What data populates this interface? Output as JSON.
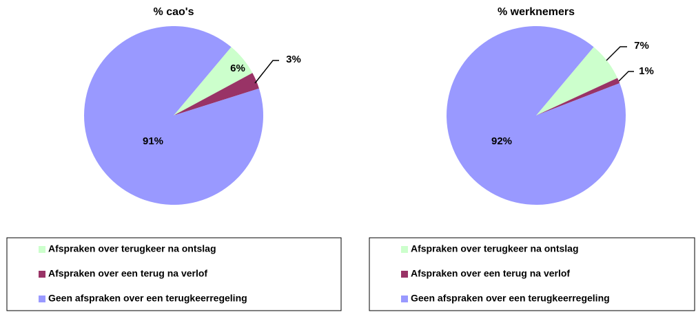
{
  "chart_data": [
    {
      "type": "pie",
      "title": "% cao's",
      "categories": [
        "Afspraken over terugkeer na ontslag",
        "Afspraken over een terug na verlof",
        "Geen afspraken over een terugkeerregeling"
      ],
      "values": [
        6,
        3,
        91
      ],
      "value_labels": [
        "6%",
        "3%",
        "91%"
      ],
      "colors": [
        "#ccffcc",
        "#993366",
        "#9999ff"
      ]
    },
    {
      "type": "pie",
      "title": "% werknemers",
      "categories": [
        "Afspraken over terugkeer na ontslag",
        "Afspraken over een terug na verlof",
        "Geen afspraken over een terugkeerregeling"
      ],
      "values": [
        7,
        1,
        92
      ],
      "value_labels": [
        "7%",
        "1%",
        "92%"
      ],
      "colors": [
        "#ccffcc",
        "#993366",
        "#9999ff"
      ]
    }
  ]
}
